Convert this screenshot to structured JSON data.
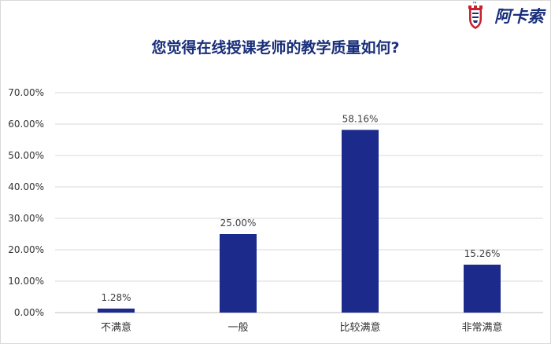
{
  "brand": {
    "name": "阿卡索",
    "tm": "™",
    "icon": "castle-shield-logo-icon",
    "color": "#1a2f7a"
  },
  "chart_data": {
    "type": "bar",
    "title": "您觉得在线授课老师的教学质量如何?",
    "categories": [
      "不满意",
      "一般",
      "比较满意",
      "非常满意"
    ],
    "values": [
      1.28,
      25.0,
      58.16,
      15.26
    ],
    "value_labels": [
      "1.28%",
      "25.00%",
      "58.16%",
      "15.26%"
    ],
    "yticks": [
      "0.00%",
      "10.00%",
      "20.00%",
      "30.00%",
      "40.00%",
      "50.00%",
      "60.00%",
      "70.00%"
    ],
    "ylim": [
      0,
      70
    ],
    "grid": true,
    "legend": "none",
    "bar_color": "#1c2a8c",
    "xlabel": "",
    "ylabel": ""
  }
}
